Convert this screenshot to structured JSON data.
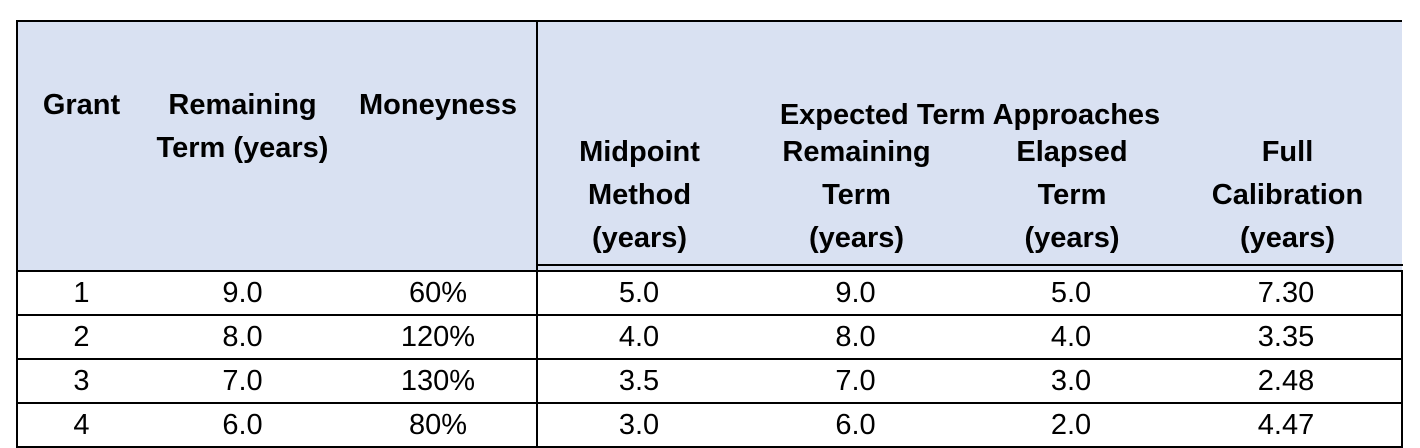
{
  "table": {
    "group_header": "Expected Term Approaches",
    "columns": [
      {
        "key": "grant",
        "lines": [
          "Grant"
        ]
      },
      {
        "key": "remaining_term",
        "lines": [
          "Remaining",
          "Term (years)"
        ]
      },
      {
        "key": "moneyness",
        "lines": [
          "Moneyness"
        ]
      },
      {
        "key": "midpoint_method",
        "lines": [
          "Midpoint",
          "Method",
          "(years)"
        ]
      },
      {
        "key": "remaining_term_approach",
        "lines": [
          "Remaining",
          "Term",
          "(years)"
        ]
      },
      {
        "key": "elapsed_term",
        "lines": [
          "Elapsed",
          "Term",
          "(years)"
        ]
      },
      {
        "key": "full_calibration",
        "lines": [
          "Full",
          "Calibration",
          "(years)"
        ]
      }
    ],
    "rows": [
      [
        "1",
        "9.0",
        "60%",
        "5.0",
        "9.0",
        "5.0",
        "7.30"
      ],
      [
        "2",
        "8.0",
        "120%",
        "4.0",
        "8.0",
        "4.0",
        "3.35"
      ],
      [
        "3",
        "7.0",
        "130%",
        "3.5",
        "7.0",
        "3.0",
        "2.48"
      ],
      [
        "4",
        "6.0",
        "80%",
        "3.0",
        "6.0",
        "2.0",
        "4.47"
      ]
    ]
  }
}
